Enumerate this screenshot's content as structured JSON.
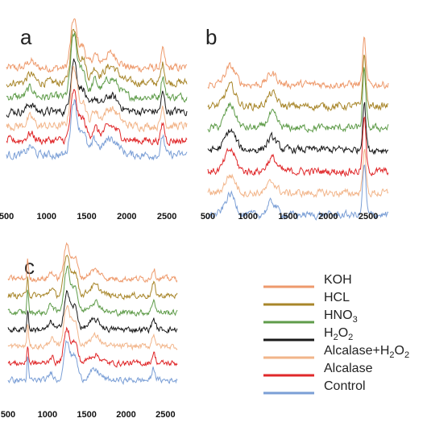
{
  "colors": {
    "KOH": "#ee9a6c",
    "HCL": "#a8862a",
    "HNO3": "#5f9c4a",
    "H2O2": "#1a1a1a",
    "Alcalase+H2O2": "#f2b58a",
    "Alcalase": "#e0282a",
    "Control": "#7b9fd6"
  },
  "legend": [
    {
      "key": "KOH",
      "label": "KOH",
      "sub": ""
    },
    {
      "key": "HCL",
      "label": "HCL",
      "sub": ""
    },
    {
      "key": "HNO3",
      "label": "HNO",
      "sub": "3"
    },
    {
      "key": "H2O2",
      "label": "H",
      "sub": "2",
      "label2": "O",
      "sub2": "2"
    },
    {
      "key": "Alcalase+H2O2",
      "label": "Alcalase+H",
      "sub": "2",
      "label2": "O",
      "sub2": "2"
    },
    {
      "key": "Alcalase",
      "label": "Alcalase",
      "sub": ""
    },
    {
      "key": "Control",
      "label": "Control",
      "sub": ""
    }
  ],
  "chart_data": [
    {
      "type": "line",
      "panel": "a",
      "xlim": [
        500,
        2750
      ],
      "xticks": [
        500,
        1000,
        1500,
        2000,
        2500
      ],
      "series_order_top_to_bottom": [
        "KOH",
        "HCL",
        "HNO3",
        "H2O2",
        "Alcalase+H2O2",
        "Alcalase",
        "Control"
      ],
      "peaks": [
        {
          "x": 800,
          "h": 0.15,
          "w": 60
        },
        {
          "x": 1340,
          "h": 1.0,
          "w": 55
        },
        {
          "x": 1450,
          "h": 0.45,
          "w": 60
        },
        {
          "x": 1600,
          "h": 0.25,
          "w": 50
        },
        {
          "x": 1800,
          "h": 0.3,
          "w": 130
        },
        {
          "x": 2450,
          "h": 0.35,
          "w": 30
        }
      ]
    },
    {
      "type": "line",
      "panel": "b",
      "xlim": [
        500,
        2750
      ],
      "xticks": [
        500,
        1000,
        1500,
        2000,
        2500
      ],
      "series_order_top_to_bottom": [
        "KOH",
        "HCL",
        "HNO3",
        "H2O2",
        "Alcalase",
        "Alcalase+H2O2",
        "Control"
      ],
      "peaks": [
        {
          "x": 780,
          "h": 0.4,
          "w": 90
        },
        {
          "x": 1300,
          "h": 0.25,
          "w": 80
        },
        {
          "x": 2450,
          "h": 1.0,
          "w": 28
        }
      ]
    },
    {
      "type": "line",
      "panel": "c",
      "xlim": [
        500,
        2650
      ],
      "xticks": [
        500,
        1000,
        1500,
        2000,
        2500
      ],
      "series_order_top_to_bottom": [
        "KOH",
        "HCL",
        "HNO3",
        "H2O2",
        "Alcalase+H2O2",
        "Alcalase",
        "Control"
      ],
      "peaks": [
        {
          "x": 750,
          "h": 0.55,
          "w": 14
        },
        {
          "x": 1050,
          "h": 0.2,
          "w": 40
        },
        {
          "x": 1250,
          "h": 1.0,
          "w": 55
        },
        {
          "x": 1350,
          "h": 0.6,
          "w": 50
        },
        {
          "x": 1600,
          "h": 0.25,
          "w": 100
        },
        {
          "x": 2350,
          "h": 0.3,
          "w": 30
        }
      ]
    }
  ]
}
